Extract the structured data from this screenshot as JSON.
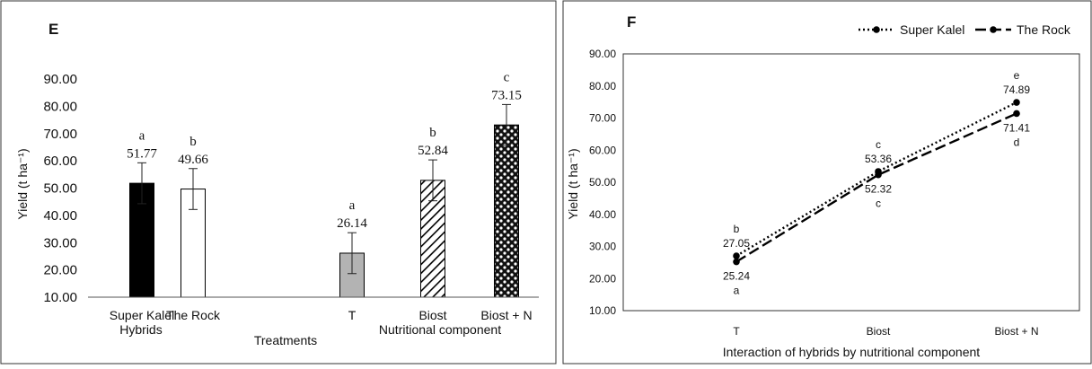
{
  "chart_data": [
    {
      "type": "bar",
      "panel_label": "E",
      "ylabel": "Yield (t ha⁻¹)",
      "ylim": [
        10,
        90
      ],
      "yticks": [
        "10.00",
        "20.00",
        "30.00",
        "40.00",
        "50.00",
        "60.00",
        "70.00",
        "80.00",
        "90.00"
      ],
      "groups": [
        {
          "name": "Hybrids",
          "categories": [
            {
              "label": "Super Kalel",
              "value": 51.77,
              "value_label": "51.77",
              "error": 7.5,
              "letter": "a",
              "color": "#000000",
              "pattern": "solid"
            },
            {
              "label": "The Rock",
              "value": 49.66,
              "value_label": "49.66",
              "error": 7.5,
              "letter": "b",
              "color": "#ffffff",
              "pattern": "empty"
            }
          ]
        },
        {
          "name": "Nutritional component",
          "categories": [
            {
              "label": "T",
              "value": 26.14,
              "value_label": "26.14",
              "error": 7.5,
              "letter": "a",
              "color": "#b3b3b3",
              "pattern": "gray"
            },
            {
              "label": "Biost",
              "value": 52.84,
              "value_label": "52.84",
              "error": 7.5,
              "letter": "b",
              "color": "#ffffff",
              "pattern": "diagonal-stripes"
            },
            {
              "label": "Biost + N",
              "value": 73.15,
              "value_label": "73.15",
              "error": 7.5,
              "letter": "c",
              "color": "#000000",
              "pattern": "checker"
            }
          ]
        }
      ],
      "middle_label": "Treatments"
    },
    {
      "type": "line",
      "panel_label": "F",
      "categories": [
        "T",
        "Biost",
        "Biost + N"
      ],
      "xlabel": "Interaction of hybrids by nutritional component",
      "ylabel": "Yield (t ha⁻¹)",
      "ylim": [
        10,
        90
      ],
      "yticks": [
        "10.00",
        "20.00",
        "30.00",
        "40.00",
        "50.00",
        "60.00",
        "70.00",
        "80.00",
        "90.00"
      ],
      "legend_position": "top-right",
      "series": [
        {
          "name": "Super Kalel",
          "style": "dotted",
          "values": [
            27.05,
            53.36,
            74.89
          ],
          "value_labels": [
            "27.05",
            "53.36",
            "74.89"
          ],
          "letters": [
            "b",
            "c",
            "e"
          ]
        },
        {
          "name": "The Rock",
          "style": "dashed",
          "values": [
            25.24,
            52.32,
            71.41
          ],
          "value_labels": [
            "25.24",
            "52.32",
            "71.41"
          ],
          "letters": [
            "a",
            "c",
            "d"
          ]
        }
      ]
    }
  ]
}
